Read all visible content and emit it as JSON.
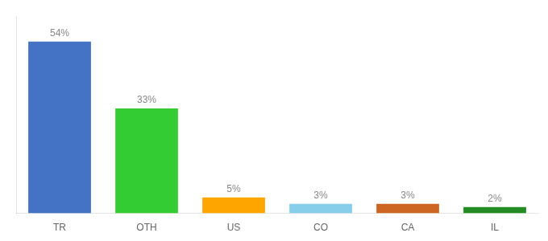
{
  "chart_data": {
    "type": "bar",
    "categories": [
      "TR",
      "OTH",
      "US",
      "CO",
      "CA",
      "IL"
    ],
    "values": [
      54,
      33,
      5,
      3,
      3,
      2
    ],
    "value_labels": [
      "54%",
      "33%",
      "5%",
      "3%",
      "3%",
      "2%"
    ],
    "colors": [
      "#4472C4",
      "#33CC33",
      "#FFA500",
      "#87CEEB",
      "#CC6622",
      "#228B22"
    ],
    "ylim": [
      0,
      62
    ],
    "grid": false,
    "data_labels": true,
    "tick_labels": "x"
  }
}
